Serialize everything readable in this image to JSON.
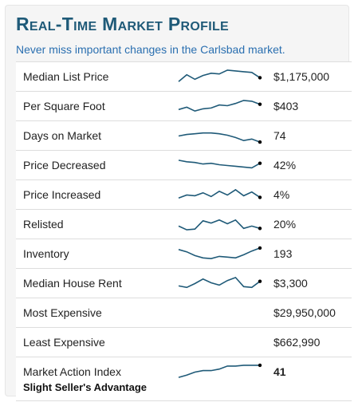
{
  "widget": {
    "title": "Real-Time Market Profile",
    "subtitle": "Never miss important changes in the Carlsbad market."
  },
  "colors": {
    "title": "#1f5a78",
    "subtitle": "#2a6fb0",
    "sparkline": "#1f5a78"
  },
  "rows": [
    {
      "label": "Median List Price",
      "value": "$1,175,000",
      "spark": [
        4,
        13,
        7,
        12,
        15,
        14,
        19,
        18,
        17,
        16,
        9
      ]
    },
    {
      "label": "Per Square Foot",
      "value": "$403",
      "spark": [
        6,
        9,
        4,
        7,
        8,
        12,
        11,
        14,
        18,
        17,
        13
      ]
    },
    {
      "label": "Days on Market",
      "value": "74",
      "spark": [
        10,
        12,
        13,
        14,
        14,
        13,
        11,
        8,
        4,
        6,
        2
      ]
    },
    {
      "label": "Price Decreased",
      "value": "42%",
      "spark": [
        17,
        15,
        14,
        12,
        13,
        11,
        10,
        9,
        8,
        7,
        13
      ]
    },
    {
      "label": "Price Increased",
      "value": "4%",
      "spark": [
        6,
        10,
        9,
        13,
        8,
        15,
        10,
        17,
        9,
        14,
        7
      ]
    },
    {
      "label": "Relisted",
      "value": "20%",
      "spark": [
        8,
        3,
        4,
        15,
        12,
        16,
        11,
        16,
        5,
        8,
        5
      ]
    },
    {
      "label": "Inventory",
      "value": "193",
      "spark": [
        16,
        13,
        8,
        5,
        4,
        7,
        6,
        5,
        9,
        14,
        18
      ]
    },
    {
      "label": "Median House Rent",
      "value": "$3,300",
      "spark": [
        7,
        5,
        10,
        16,
        11,
        8,
        14,
        18,
        6,
        5,
        13
      ]
    },
    {
      "label": "Most Expensive",
      "value": "$29,950,000"
    },
    {
      "label": "Least Expensive",
      "value": "$662,990"
    },
    {
      "label": "Market Action Index",
      "sublabel": "Slight Seller's Advantage",
      "value": "41",
      "spark": [
        3,
        6,
        10,
        12,
        12,
        14,
        18,
        18,
        19,
        19,
        19
      ]
    }
  ]
}
